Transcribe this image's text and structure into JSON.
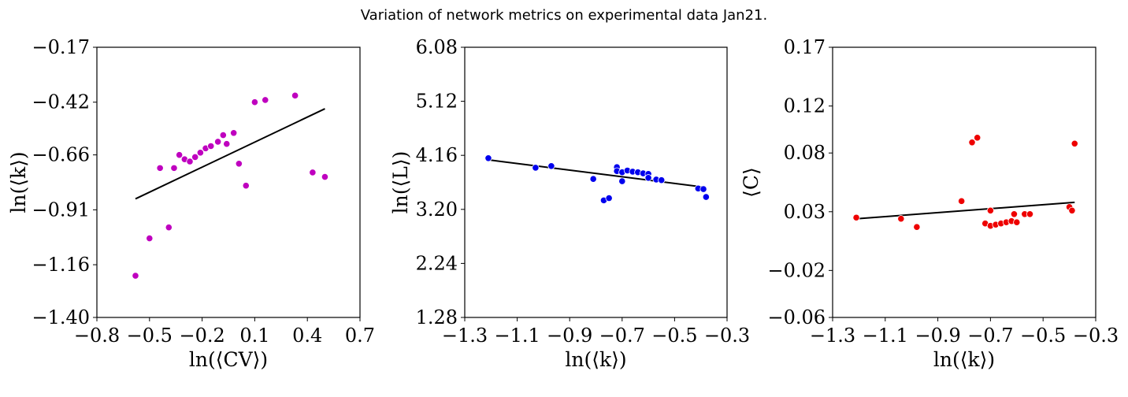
{
  "suptitle": "Variation of network metrics on experimental data Jan21.",
  "chart_data": [
    {
      "type": "scatter",
      "xlabel": "ln(⟨CV⟩)",
      "ylabel": "ln(⟨k⟩)",
      "xlim": [
        -0.8,
        0.7
      ],
      "ylim": [
        -1.4,
        -0.17
      ],
      "xticks": [
        -0.8,
        -0.5,
        -0.2,
        0.1,
        0.4,
        0.7
      ],
      "xtick_labels": [
        "−0.8",
        "−0.5",
        "−0.2",
        "0.1",
        "0.4",
        "0.7"
      ],
      "yticks": [
        -1.4,
        -1.16,
        -0.91,
        -0.66,
        -0.42,
        -0.17
      ],
      "ytick_labels": [
        "−1.40",
        "−1.16",
        "−0.91",
        "−0.66",
        "−0.42",
        "−0.17"
      ],
      "point_color": "#bf00bf",
      "points": [
        [
          -0.58,
          -1.21
        ],
        [
          -0.5,
          -1.04
        ],
        [
          -0.44,
          -0.72
        ],
        [
          -0.39,
          -0.99
        ],
        [
          -0.36,
          -0.72
        ],
        [
          -0.33,
          -0.66
        ],
        [
          -0.3,
          -0.68
        ],
        [
          -0.27,
          -0.69
        ],
        [
          -0.24,
          -0.67
        ],
        [
          -0.21,
          -0.65
        ],
        [
          -0.18,
          -0.63
        ],
        [
          -0.15,
          -0.62
        ],
        [
          -0.11,
          -0.6
        ],
        [
          -0.08,
          -0.57
        ],
        [
          -0.06,
          -0.61
        ],
        [
          -0.02,
          -0.56
        ],
        [
          0.01,
          -0.7
        ],
        [
          0.05,
          -0.8
        ],
        [
          0.1,
          -0.42
        ],
        [
          0.16,
          -0.41
        ],
        [
          0.33,
          -0.39
        ],
        [
          0.43,
          -0.74
        ],
        [
          0.5,
          -0.76
        ]
      ],
      "fit_line": [
        [
          -0.58,
          -0.86
        ],
        [
          0.5,
          -0.45
        ]
      ],
      "fit_color": "#000000"
    },
    {
      "type": "scatter",
      "xlabel": "ln(⟨k⟩)",
      "ylabel": "ln(⟨L⟩)",
      "xlim": [
        -1.3,
        -0.3
      ],
      "ylim": [
        1.28,
        6.08
      ],
      "xticks": [
        -1.3,
        -1.1,
        -0.9,
        -0.7,
        -0.5,
        -0.3
      ],
      "xtick_labels": [
        "−1.3",
        "−1.1",
        "−0.9",
        "−0.7",
        "−0.5",
        "−0.3"
      ],
      "yticks": [
        1.28,
        2.24,
        3.2,
        4.16,
        5.12,
        6.08
      ],
      "ytick_labels": [
        "1.28",
        "2.24",
        "3.20",
        "4.16",
        "5.12",
        "6.08"
      ],
      "point_color": "#0000ee",
      "points": [
        [
          -1.21,
          4.11
        ],
        [
          -1.03,
          3.94
        ],
        [
          -0.97,
          3.97
        ],
        [
          -0.81,
          3.74
        ],
        [
          -0.77,
          3.36
        ],
        [
          -0.75,
          3.4
        ],
        [
          -0.72,
          3.95
        ],
        [
          -0.72,
          3.88
        ],
        [
          -0.7,
          3.86
        ],
        [
          -0.7,
          3.7
        ],
        [
          -0.68,
          3.89
        ],
        [
          -0.66,
          3.87
        ],
        [
          -0.64,
          3.86
        ],
        [
          -0.62,
          3.84
        ],
        [
          -0.6,
          3.83
        ],
        [
          -0.6,
          3.76
        ],
        [
          -0.57,
          3.73
        ],
        [
          -0.55,
          3.72
        ],
        [
          -0.41,
          3.57
        ],
        [
          -0.39,
          3.56
        ],
        [
          -0.38,
          3.42
        ]
      ],
      "fit_line": [
        [
          -1.21,
          4.08
        ],
        [
          -0.38,
          3.59
        ]
      ],
      "fit_color": "#000000"
    },
    {
      "type": "scatter",
      "xlabel": "ln(⟨k⟩)",
      "ylabel": "⟨C⟩",
      "xlim": [
        -1.3,
        -0.3
      ],
      "ylim": [
        -0.06,
        0.17
      ],
      "xticks": [
        -1.3,
        -1.1,
        -0.9,
        -0.7,
        -0.5,
        -0.3
      ],
      "xtick_labels": [
        "−1.3",
        "−1.1",
        "−0.9",
        "−0.7",
        "−0.5",
        "−0.3"
      ],
      "yticks": [
        -0.06,
        -0.02,
        0.03,
        0.08,
        0.12,
        0.17
      ],
      "ytick_labels": [
        "−0.06",
        "−0.02",
        "0.03",
        "0.08",
        "0.12",
        "0.17"
      ],
      "point_color": "#ee0000",
      "points": [
        [
          -1.21,
          0.025
        ],
        [
          -1.04,
          0.024
        ],
        [
          -0.98,
          0.017
        ],
        [
          -0.81,
          0.039
        ],
        [
          -0.77,
          0.089
        ],
        [
          -0.75,
          0.093
        ],
        [
          -0.72,
          0.02
        ],
        [
          -0.7,
          0.018
        ],
        [
          -0.7,
          0.031
        ],
        [
          -0.68,
          0.019
        ],
        [
          -0.66,
          0.02
        ],
        [
          -0.64,
          0.021
        ],
        [
          -0.62,
          0.022
        ],
        [
          -0.61,
          0.028
        ],
        [
          -0.6,
          0.021
        ],
        [
          -0.57,
          0.028
        ],
        [
          -0.55,
          0.028
        ],
        [
          -0.4,
          0.034
        ],
        [
          -0.39,
          0.031
        ],
        [
          -0.38,
          0.088
        ]
      ],
      "fit_line": [
        [
          -1.21,
          0.024
        ],
        [
          -0.38,
          0.038
        ]
      ],
      "fit_color": "#000000"
    }
  ]
}
